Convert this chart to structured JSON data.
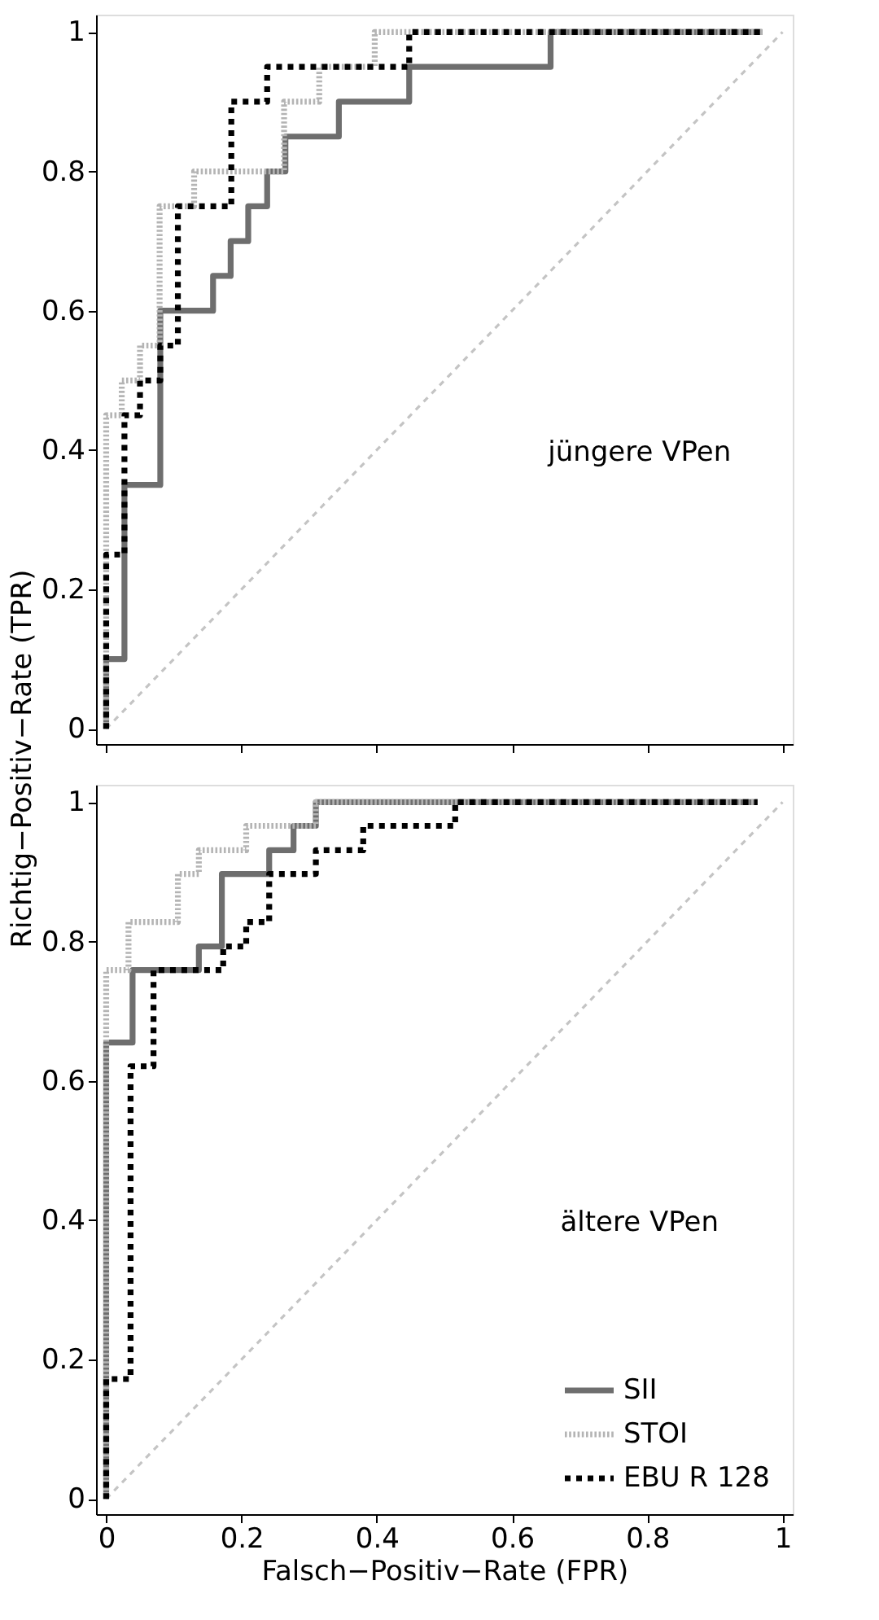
{
  "chart_data": [
    {
      "type": "step",
      "xlim": [
        -0.015,
        1.015
      ],
      "ylim": [
        -0.022,
        1.025
      ],
      "xticks": [
        0,
        0.2,
        0.4,
        0.6,
        0.8,
        1
      ],
      "yticks": [
        0,
        0.2,
        0.4,
        0.6,
        0.8,
        1
      ],
      "tick_labels": "y",
      "grid": false,
      "ylabel": "Richtig−Positiv−Rate (TPR)",
      "annotations": [
        "jüngere VPen"
      ],
      "series": [
        {
          "type": "line",
          "color": "#c4c4c4",
          "line_style": "dashed",
          "x": [
            0,
            1
          ],
          "values": [
            0,
            1
          ]
        },
        {
          "color": "#6e6e6e",
          "line_style": "solid",
          "x": [
            0,
            0,
            0.027,
            0.08,
            0.158,
            0.184,
            0.21,
            0.238,
            0.265,
            0.344,
            0.448,
            0.657,
            0.97
          ],
          "values": [
            0,
            0.1,
            0.35,
            0.6,
            0.65,
            0.7,
            0.75,
            0.8,
            0.85,
            0.9,
            0.95,
            1,
            1
          ]
        },
        {
          "color": "#b4b4b4",
          "line_style": "dotted",
          "x": [
            0,
            0,
            0.023,
            0.05,
            0.079,
            0.13,
            0.263,
            0.315,
            0.397,
            0.97
          ],
          "values": [
            0,
            0.45,
            0.5,
            0.55,
            0.75,
            0.8,
            0.9,
            0.95,
            1,
            1
          ]
        },
        {
          "color": "#000000",
          "line_style": "dashed",
          "x": [
            0,
            0,
            0.027,
            0.05,
            0.08,
            0.106,
            0.185,
            0.238,
            0.448,
            0.97
          ],
          "values": [
            0,
            0.25,
            0.45,
            0.5,
            0.55,
            0.75,
            0.9,
            0.95,
            1,
            1
          ]
        }
      ]
    },
    {
      "type": "step",
      "xlim": [
        -0.015,
        1.015
      ],
      "ylim": [
        -0.022,
        1.025
      ],
      "xticks": [
        0,
        0.2,
        0.4,
        0.6,
        0.8,
        1
      ],
      "yticks": [
        0,
        0.2,
        0.4,
        0.6,
        0.8,
        1
      ],
      "grid": false,
      "xlabel": "Falsch−Positiv−Rate (FPR)",
      "legend": "bottom right",
      "annotations": [
        "ältere VPen"
      ],
      "series": [
        {
          "type": "line",
          "color": "#c4c4c4",
          "line_style": "dashed",
          "x": [
            0,
            1
          ],
          "values": [
            0,
            1
          ]
        },
        {
          "name": "SII",
          "color": "#6e6e6e",
          "line_style": "solid",
          "x": [
            0,
            0,
            0.039,
            0.137,
            0.171,
            0.241,
            0.277,
            0.31,
            0.963
          ],
          "values": [
            0,
            0.655,
            0.759,
            0.793,
            0.897,
            0.931,
            0.966,
            1,
            1
          ]
        },
        {
          "name": "STOI",
          "color": "#b4b4b4",
          "line_style": "dotted",
          "x": [
            0,
            0,
            0.033,
            0.106,
            0.137,
            0.207,
            0.31,
            0.963
          ],
          "values": [
            0,
            0.759,
            0.828,
            0.897,
            0.931,
            0.966,
            1,
            1
          ]
        },
        {
          "name": "EBU R 128",
          "color": "#000000",
          "line_style": "dashed",
          "x": [
            0,
            0,
            0.036,
            0.07,
            0.173,
            0.207,
            0.241,
            0.31,
            0.38,
            0.516,
            0.963
          ],
          "values": [
            0,
            0.172,
            0.621,
            0.759,
            0.793,
            0.828,
            0.897,
            0.931,
            0.966,
            1,
            1
          ]
        }
      ]
    }
  ]
}
